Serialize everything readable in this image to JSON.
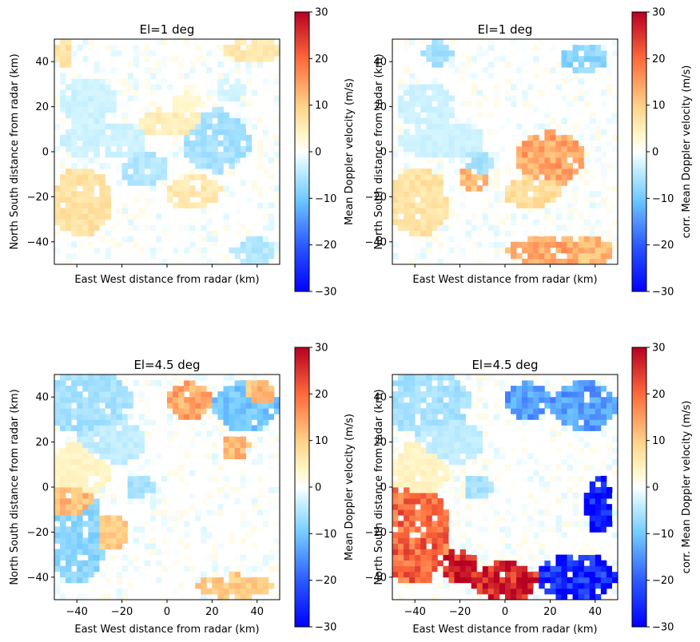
{
  "chart_data": [
    {
      "type": "heatmap",
      "title": "El=1 deg",
      "xlabel": "East West distance from radar (km)",
      "ylabel": "North South distance from radar (km)",
      "xlim": [
        -50,
        50
      ],
      "ylim": [
        -50,
        50
      ],
      "xticks": [],
      "yticks": [
        -40,
        -20,
        0,
        20,
        40
      ],
      "colorbar": {
        "label": "Mean Doppler velocity (m/s)",
        "range": [
          -30,
          30
        ],
        "ticks": [
          -30,
          -20,
          -10,
          0,
          10,
          20,
          30
        ],
        "colormap": "RdYlBu_r"
      },
      "grid": false,
      "field": {
        "background": 0,
        "regions": [
          {
            "x": -46,
            "y": 44,
            "rx": 4,
            "ry": 6,
            "v": 7
          },
          {
            "x": -35,
            "y": 22,
            "rx": 12,
            "ry": 10,
            "v": -3
          },
          {
            "x": -28,
            "y": 5,
            "rx": 18,
            "ry": 8,
            "v": -3
          },
          {
            "x": -38,
            "y": -22,
            "rx": 13,
            "ry": 14,
            "v": 7
          },
          {
            "x": -10,
            "y": -8,
            "rx": 10,
            "ry": 7,
            "v": -5
          },
          {
            "x": 2,
            "y": 13,
            "rx": 14,
            "ry": 6,
            "v": 5
          },
          {
            "x": 22,
            "y": 5,
            "rx": 14,
            "ry": 13,
            "v": -6
          },
          {
            "x": 12,
            "y": -18,
            "rx": 12,
            "ry": 7,
            "v": 6
          },
          {
            "x": 38,
            "y": 45,
            "rx": 12,
            "ry": 5,
            "v": 6
          },
          {
            "x": 28,
            "y": 28,
            "rx": 6,
            "ry": 5,
            "v": -3
          },
          {
            "x": 38,
            "y": -44,
            "rx": 9,
            "ry": 6,
            "v": -5
          },
          {
            "x": 8,
            "y": 22,
            "rx": 6,
            "ry": 4,
            "v": 3
          }
        ]
      }
    },
    {
      "type": "heatmap",
      "title": "El=1 deg",
      "xlabel": "East West distance from radar (km)",
      "ylabel": "North South distance from radar (km)",
      "xlim": [
        -50,
        50
      ],
      "ylim": [
        -50,
        50
      ],
      "xticks": [],
      "yticks": [
        -40,
        -20,
        0,
        20,
        40
      ],
      "colorbar": {
        "label": "corr. Mean Doppler velocity (m/s)",
        "range": [
          -30,
          30
        ],
        "ticks": [
          -30,
          -20,
          -10,
          0,
          10,
          20,
          30
        ],
        "colormap": "RdYlBu_r"
      },
      "grid": false,
      "field": {
        "background": 0,
        "regions": [
          {
            "x": -30,
            "y": 44,
            "rx": 6,
            "ry": 5,
            "v": -6
          },
          {
            "x": 35,
            "y": 42,
            "rx": 10,
            "ry": 6,
            "v": -8
          },
          {
            "x": -35,
            "y": 20,
            "rx": 12,
            "ry": 10,
            "v": -3
          },
          {
            "x": -28,
            "y": 5,
            "rx": 18,
            "ry": 8,
            "v": -3
          },
          {
            "x": -38,
            "y": -22,
            "rx": 13,
            "ry": 14,
            "v": 7
          },
          {
            "x": -14,
            "y": -12,
            "rx": 6,
            "ry": 5,
            "v": 12
          },
          {
            "x": -12,
            "y": -5,
            "rx": 6,
            "ry": 6,
            "v": -6
          },
          {
            "x": 20,
            "y": -3,
            "rx": 14,
            "ry": 11,
            "v": 14
          },
          {
            "x": 12,
            "y": -18,
            "rx": 12,
            "ry": 7,
            "v": 8
          },
          {
            "x": 20,
            "y": -44,
            "rx": 18,
            "ry": 6,
            "v": 14
          },
          {
            "x": 38,
            "y": -44,
            "rx": 9,
            "ry": 6,
            "v": 12
          }
        ]
      }
    },
    {
      "type": "heatmap",
      "title": "El=4.5 deg",
      "xlabel": "East West distance from radar (km)",
      "ylabel": "North South distance from radar (km)",
      "xlim": [
        -50,
        50
      ],
      "ylim": [
        -50,
        50
      ],
      "xticks": [
        -40,
        -20,
        0,
        20,
        40
      ],
      "yticks": [
        -40,
        -20,
        0,
        20,
        40
      ],
      "colorbar": {
        "label": "Mean Doppler velocity (m/s)",
        "range": [
          -30,
          30
        ],
        "ticks": [
          -30,
          -20,
          -10,
          0,
          10,
          20,
          30
        ],
        "colormap": "RdYlBu_r"
      },
      "grid": false,
      "field": {
        "background": 0,
        "regions": [
          {
            "x": -35,
            "y": 38,
            "rx": 18,
            "ry": 14,
            "v": -6
          },
          {
            "x": -25,
            "y": 20,
            "rx": 14,
            "ry": 10,
            "v": -4
          },
          {
            "x": -38,
            "y": 8,
            "rx": 12,
            "ry": 12,
            "v": 4
          },
          {
            "x": -40,
            "y": -22,
            "rx": 12,
            "ry": 20,
            "v": -8
          },
          {
            "x": -42,
            "y": -8,
            "rx": 9,
            "ry": 10,
            "v": 12
          },
          {
            "x": -25,
            "y": -20,
            "rx": 8,
            "ry": 8,
            "v": 10
          },
          {
            "x": -12,
            "y": 0,
            "rx": 6,
            "ry": 5,
            "v": -6
          },
          {
            "x": 10,
            "y": 38,
            "rx": 9,
            "ry": 8,
            "v": 14
          },
          {
            "x": 35,
            "y": 36,
            "rx": 14,
            "ry": 10,
            "v": -10
          },
          {
            "x": 30,
            "y": 18,
            "rx": 6,
            "ry": 5,
            "v": 12
          },
          {
            "x": 30,
            "y": -44,
            "rx": 16,
            "ry": 5,
            "v": 10
          },
          {
            "x": 40,
            "y": 40,
            "rx": 8,
            "ry": 8,
            "v": 12
          }
        ]
      }
    },
    {
      "type": "heatmap",
      "title": "El=4.5 deg",
      "xlabel": "East West distance from radar (km)",
      "ylabel": "North South distance from radar (km)",
      "xlim": [
        -50,
        50
      ],
      "ylim": [
        -50,
        50
      ],
      "xticks": [
        -40,
        -20,
        0,
        20,
        40
      ],
      "yticks": [
        -40,
        -20,
        0,
        20,
        40
      ],
      "colorbar": {
        "label": "corr. Mean Doppler velocity (m/s)",
        "range": [
          -30,
          30
        ],
        "ticks": [
          -30,
          -20,
          -10,
          0,
          10,
          20,
          30
        ],
        "colormap": "RdYlBu_r"
      },
      "grid": false,
      "field": {
        "background": 0,
        "regions": [
          {
            "x": -35,
            "y": 38,
            "rx": 18,
            "ry": 14,
            "v": -6
          },
          {
            "x": -25,
            "y": 20,
            "rx": 14,
            "ry": 10,
            "v": -4
          },
          {
            "x": -38,
            "y": 8,
            "rx": 12,
            "ry": 12,
            "v": 4
          },
          {
            "x": -40,
            "y": -20,
            "rx": 14,
            "ry": 22,
            "v": 20
          },
          {
            "x": -20,
            "y": -35,
            "rx": 8,
            "ry": 8,
            "v": 28
          },
          {
            "x": 0,
            "y": -42,
            "rx": 14,
            "ry": 8,
            "v": 28
          },
          {
            "x": -12,
            "y": 0,
            "rx": 6,
            "ry": 5,
            "v": -6
          },
          {
            "x": 10,
            "y": 38,
            "rx": 9,
            "ry": 8,
            "v": -14
          },
          {
            "x": 35,
            "y": 36,
            "rx": 14,
            "ry": 10,
            "v": -14
          },
          {
            "x": 42,
            "y": -8,
            "rx": 6,
            "ry": 12,
            "v": -28
          },
          {
            "x": 32,
            "y": -40,
            "rx": 16,
            "ry": 10,
            "v": -26
          }
        ]
      }
    }
  ]
}
